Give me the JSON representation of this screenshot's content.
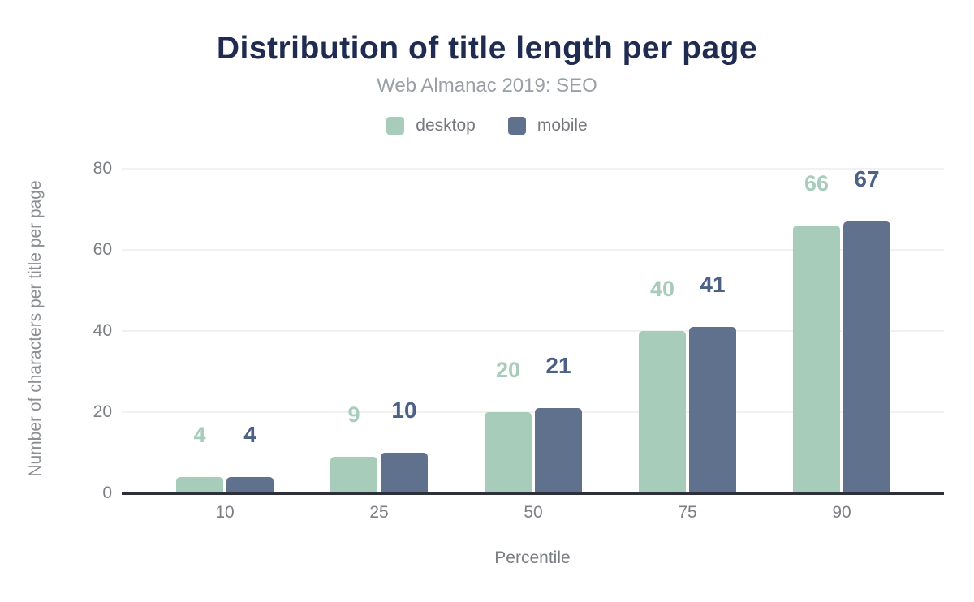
{
  "figure": {
    "title": "Distribution of title length per page",
    "subtitle": "Web Almanac 2019: SEO"
  },
  "chart_data": {
    "type": "bar",
    "title": "Distribution of title length per page",
    "subtitle": "Web Almanac 2019: SEO",
    "categories": [
      "10",
      "25",
      "50",
      "75",
      "90"
    ],
    "series": [
      {
        "name": "desktop",
        "values": [
          4,
          9,
          20,
          40,
          66
        ],
        "color": "#a8ccba",
        "label_color": "#a8ccba"
      },
      {
        "name": "mobile",
        "values": [
          4,
          10,
          21,
          41,
          67
        ],
        "color": "#5f718d",
        "label_color": "#4c6185"
      }
    ],
    "xlabel": "Percentile",
    "ylabel": "Number of characters per title per page",
    "ylim": [
      0,
      80
    ],
    "yticks": [
      0,
      20,
      40,
      60,
      80
    ],
    "grid": true,
    "legend_position": "top",
    "bar_labels_shown": true
  },
  "colors": {
    "title": "#1f2b50",
    "subtitle": "#9aa0a6",
    "axis_text": "#7b7e84",
    "axis_line": "#2d3039",
    "gridline": "#f1f1f1",
    "background": "#ffffff"
  }
}
